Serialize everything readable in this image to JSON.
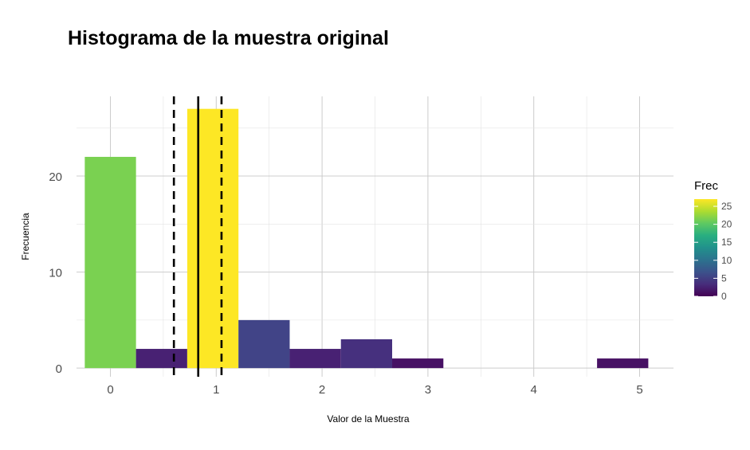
{
  "chart_data": {
    "type": "bar",
    "title": "Histograma de la muestra original",
    "xlabel": "Valor de la Muestra",
    "ylabel": "Frecuencia",
    "xlim": [
      -0.32,
      5.32
    ],
    "ylim": [
      -0.9,
      28.3
    ],
    "x_ticks": [
      0,
      1,
      2,
      3,
      4,
      5
    ],
    "y_ticks": [
      0,
      10,
      20
    ],
    "grid": true,
    "bin_width": 0.484,
    "bins": [
      {
        "center": 0.0,
        "count": 22,
        "color": "#7ad151"
      },
      {
        "center": 0.484,
        "count": 2,
        "color": "#482173"
      },
      {
        "center": 0.968,
        "count": 27,
        "color": "#fde725"
      },
      {
        "center": 1.452,
        "count": 5,
        "color": "#414487"
      },
      {
        "center": 1.936,
        "count": 2,
        "color": "#482173"
      },
      {
        "center": 2.42,
        "count": 3,
        "color": "#46307e"
      },
      {
        "center": 2.904,
        "count": 1,
        "color": "#471164"
      },
      {
        "center": 4.84,
        "count": 1,
        "color": "#471164"
      }
    ],
    "reference_lines": [
      {
        "x": 0.83,
        "style": "solid",
        "color": "#000000"
      },
      {
        "x": 0.6,
        "style": "dashed",
        "color": "#000000"
      },
      {
        "x": 1.05,
        "style": "dashed",
        "color": "#000000"
      }
    ],
    "legend": {
      "title": "Frec",
      "placement": "right",
      "ticks": [
        0,
        5,
        10,
        15,
        20,
        25
      ],
      "range": [
        0,
        27
      ],
      "gradient": [
        "#440154",
        "#472d7b",
        "#3b528b",
        "#2c728e",
        "#21918c",
        "#28ae80",
        "#5ec962",
        "#addc30",
        "#fde725"
      ]
    }
  }
}
